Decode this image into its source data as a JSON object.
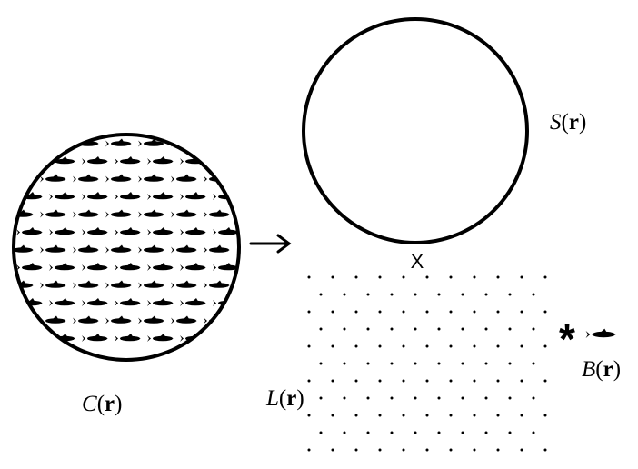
{
  "labels": {
    "c_var": "C",
    "s_var": "S",
    "l_var": "L",
    "b_var": "B",
    "open": "(",
    "arg": "r",
    "close": ")"
  },
  "marks": {
    "contact_point": "X",
    "star": "*"
  },
  "icons": {
    "swimmer": "fish-icon",
    "flow": "arrow-right-icon"
  }
}
